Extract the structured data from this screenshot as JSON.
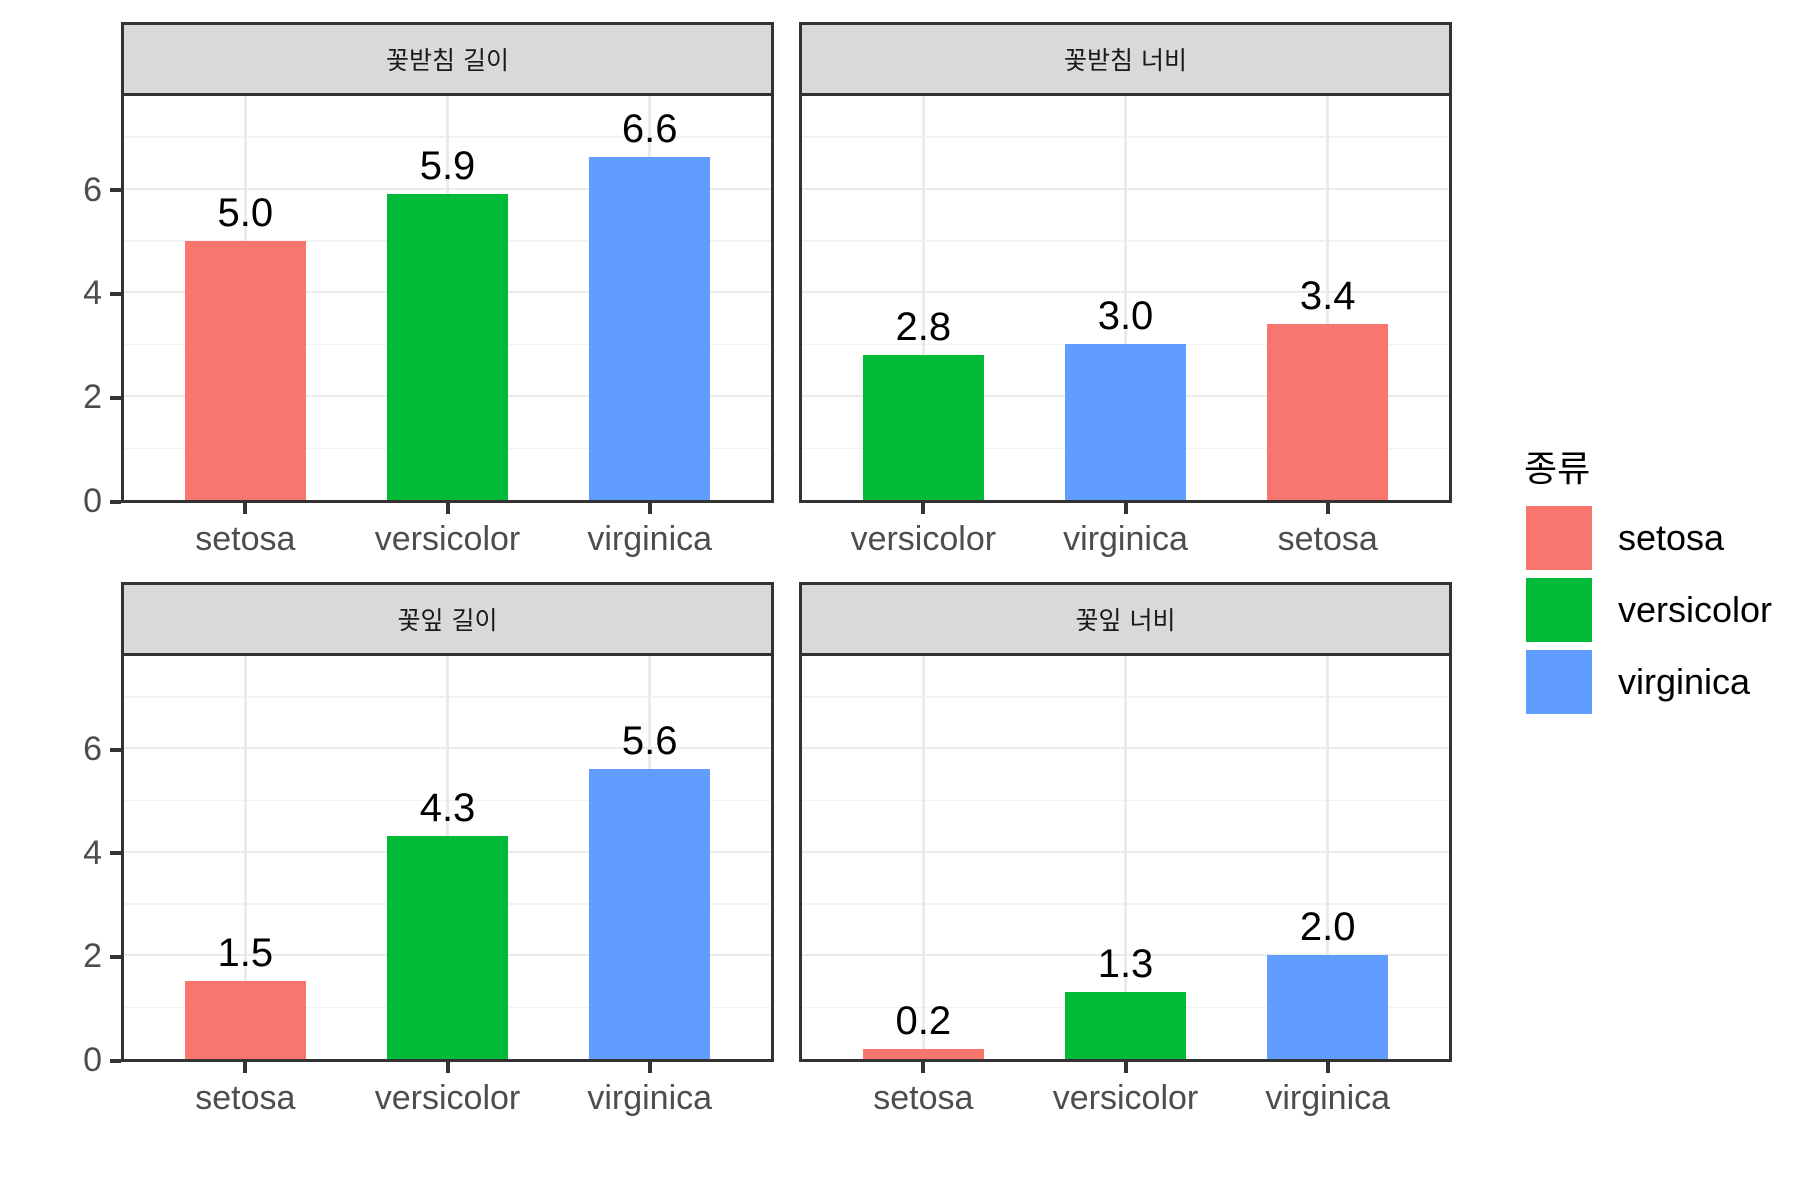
{
  "chart_data": {
    "type": "bar",
    "layout": "facet_wrap 2x2, free x scales, shared y",
    "ylim": [
      0,
      7.9
    ],
    "yticks": [
      0,
      2,
      4,
      6
    ],
    "grid": true,
    "legend_position": "right",
    "legend": {
      "title": "종류",
      "entries": [
        {
          "label": "setosa",
          "color": "#F8766D"
        },
        {
          "label": "versicolor",
          "color": "#00BA38"
        },
        {
          "label": "virginica",
          "color": "#619CFF"
        }
      ]
    },
    "panels": [
      {
        "title": "꽃받침 길이",
        "categories": [
          "setosa",
          "versicolor",
          "virginica"
        ],
        "values": [
          5.0,
          5.9,
          6.6
        ],
        "labels": [
          "5.0",
          "5.9",
          "6.6"
        ]
      },
      {
        "title": "꽃받침 너비",
        "categories": [
          "versicolor",
          "virginica",
          "setosa"
        ],
        "values": [
          2.8,
          3.0,
          3.4
        ],
        "labels": [
          "2.8",
          "3.0",
          "3.4"
        ]
      },
      {
        "title": "꽃잎 길이",
        "categories": [
          "setosa",
          "versicolor",
          "virginica"
        ],
        "values": [
          1.5,
          4.3,
          5.6
        ],
        "labels": [
          "1.5",
          "4.3",
          "5.6"
        ]
      },
      {
        "title": "꽃잎 너비",
        "categories": [
          "setosa",
          "versicolor",
          "virginica"
        ],
        "values": [
          0.2,
          1.3,
          2.0
        ],
        "labels": [
          "0.2",
          "1.3",
          "2.0"
        ]
      }
    ],
    "title": "",
    "xlabel": "",
    "ylabel": ""
  },
  "colors": {
    "setosa": "#F8766D",
    "versicolor": "#00BA38",
    "virginica": "#619CFF",
    "strip_bg": "#D9D9D9",
    "border": "#333333",
    "grid": "#EBEBEB"
  }
}
